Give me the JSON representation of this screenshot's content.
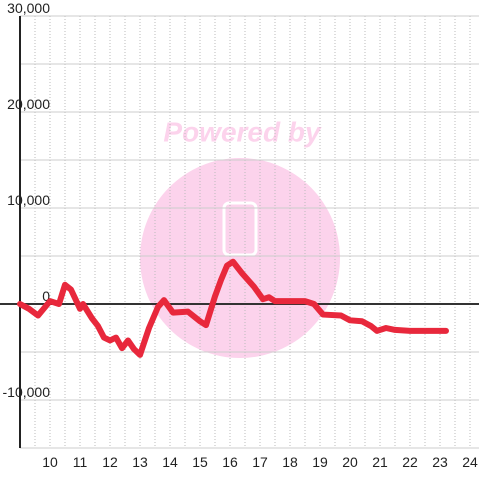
{
  "chart_data": {
    "type": "line",
    "watermark": "Powered by",
    "x": [
      9.0,
      9.3,
      9.6,
      10.0,
      10.3,
      10.5,
      10.7,
      11.0,
      11.1,
      11.4,
      11.6,
      11.8,
      12.0,
      12.2,
      12.4,
      12.6,
      12.8,
      13.0,
      13.3,
      13.6,
      13.8,
      14.1,
      14.6,
      15.0,
      15.2,
      15.5,
      15.7,
      15.9,
      16.1,
      16.4,
      16.8,
      17.1,
      17.3,
      17.5,
      18.0,
      18.5,
      18.8,
      19.1,
      19.7,
      20.0,
      20.4,
      20.7,
      20.9,
      21.2,
      21.5,
      22.0,
      23.2
    ],
    "series": [
      {
        "color": "#e8283c",
        "values": [
          0,
          -500,
          -1200,
          300,
          0,
          2000,
          1500,
          -500,
          0,
          -1500,
          -2300,
          -3500,
          -3800,
          -3500,
          -4600,
          -3800,
          -4700,
          -5300,
          -2500,
          -300,
          400,
          -900,
          -800,
          -1800,
          -2200,
          800,
          2500,
          4000,
          4400,
          3200,
          1800,
          500,
          700,
          300,
          300,
          300,
          0,
          -1100,
          -1200,
          -1700,
          -1800,
          -2300,
          -2800,
          -2500,
          -2700,
          -2800,
          -2800
        ]
      }
    ],
    "xlim": [
      9.0,
      24.3
    ],
    "xticks": [
      10,
      11,
      12,
      13,
      14,
      15,
      16,
      17,
      18,
      19,
      20,
      21,
      22,
      23,
      24
    ],
    "xgrid": [
      9.5,
      10,
      10.5,
      11,
      11.5,
      12,
      12.5,
      13,
      13.5,
      14,
      14.5,
      15,
      15.5,
      16,
      16.5,
      17,
      17.5,
      18,
      18.5,
      19,
      19.5,
      20,
      20.5,
      21,
      21.5,
      22,
      22.5,
      23,
      23.5,
      24
    ],
    "ylim": [
      -15000,
      30000
    ],
    "yticks": [
      {
        "value": -10000,
        "label": "-10,000"
      },
      0,
      {
        "value": 10000,
        "label": "10,000"
      },
      {
        "value": 20000,
        "label": "20,000"
      },
      {
        "value": 30000,
        "label": "30,000"
      }
    ],
    "ygrid": [
      -15000,
      -5000,
      5000,
      15000,
      25000
    ],
    "grid": true
  }
}
